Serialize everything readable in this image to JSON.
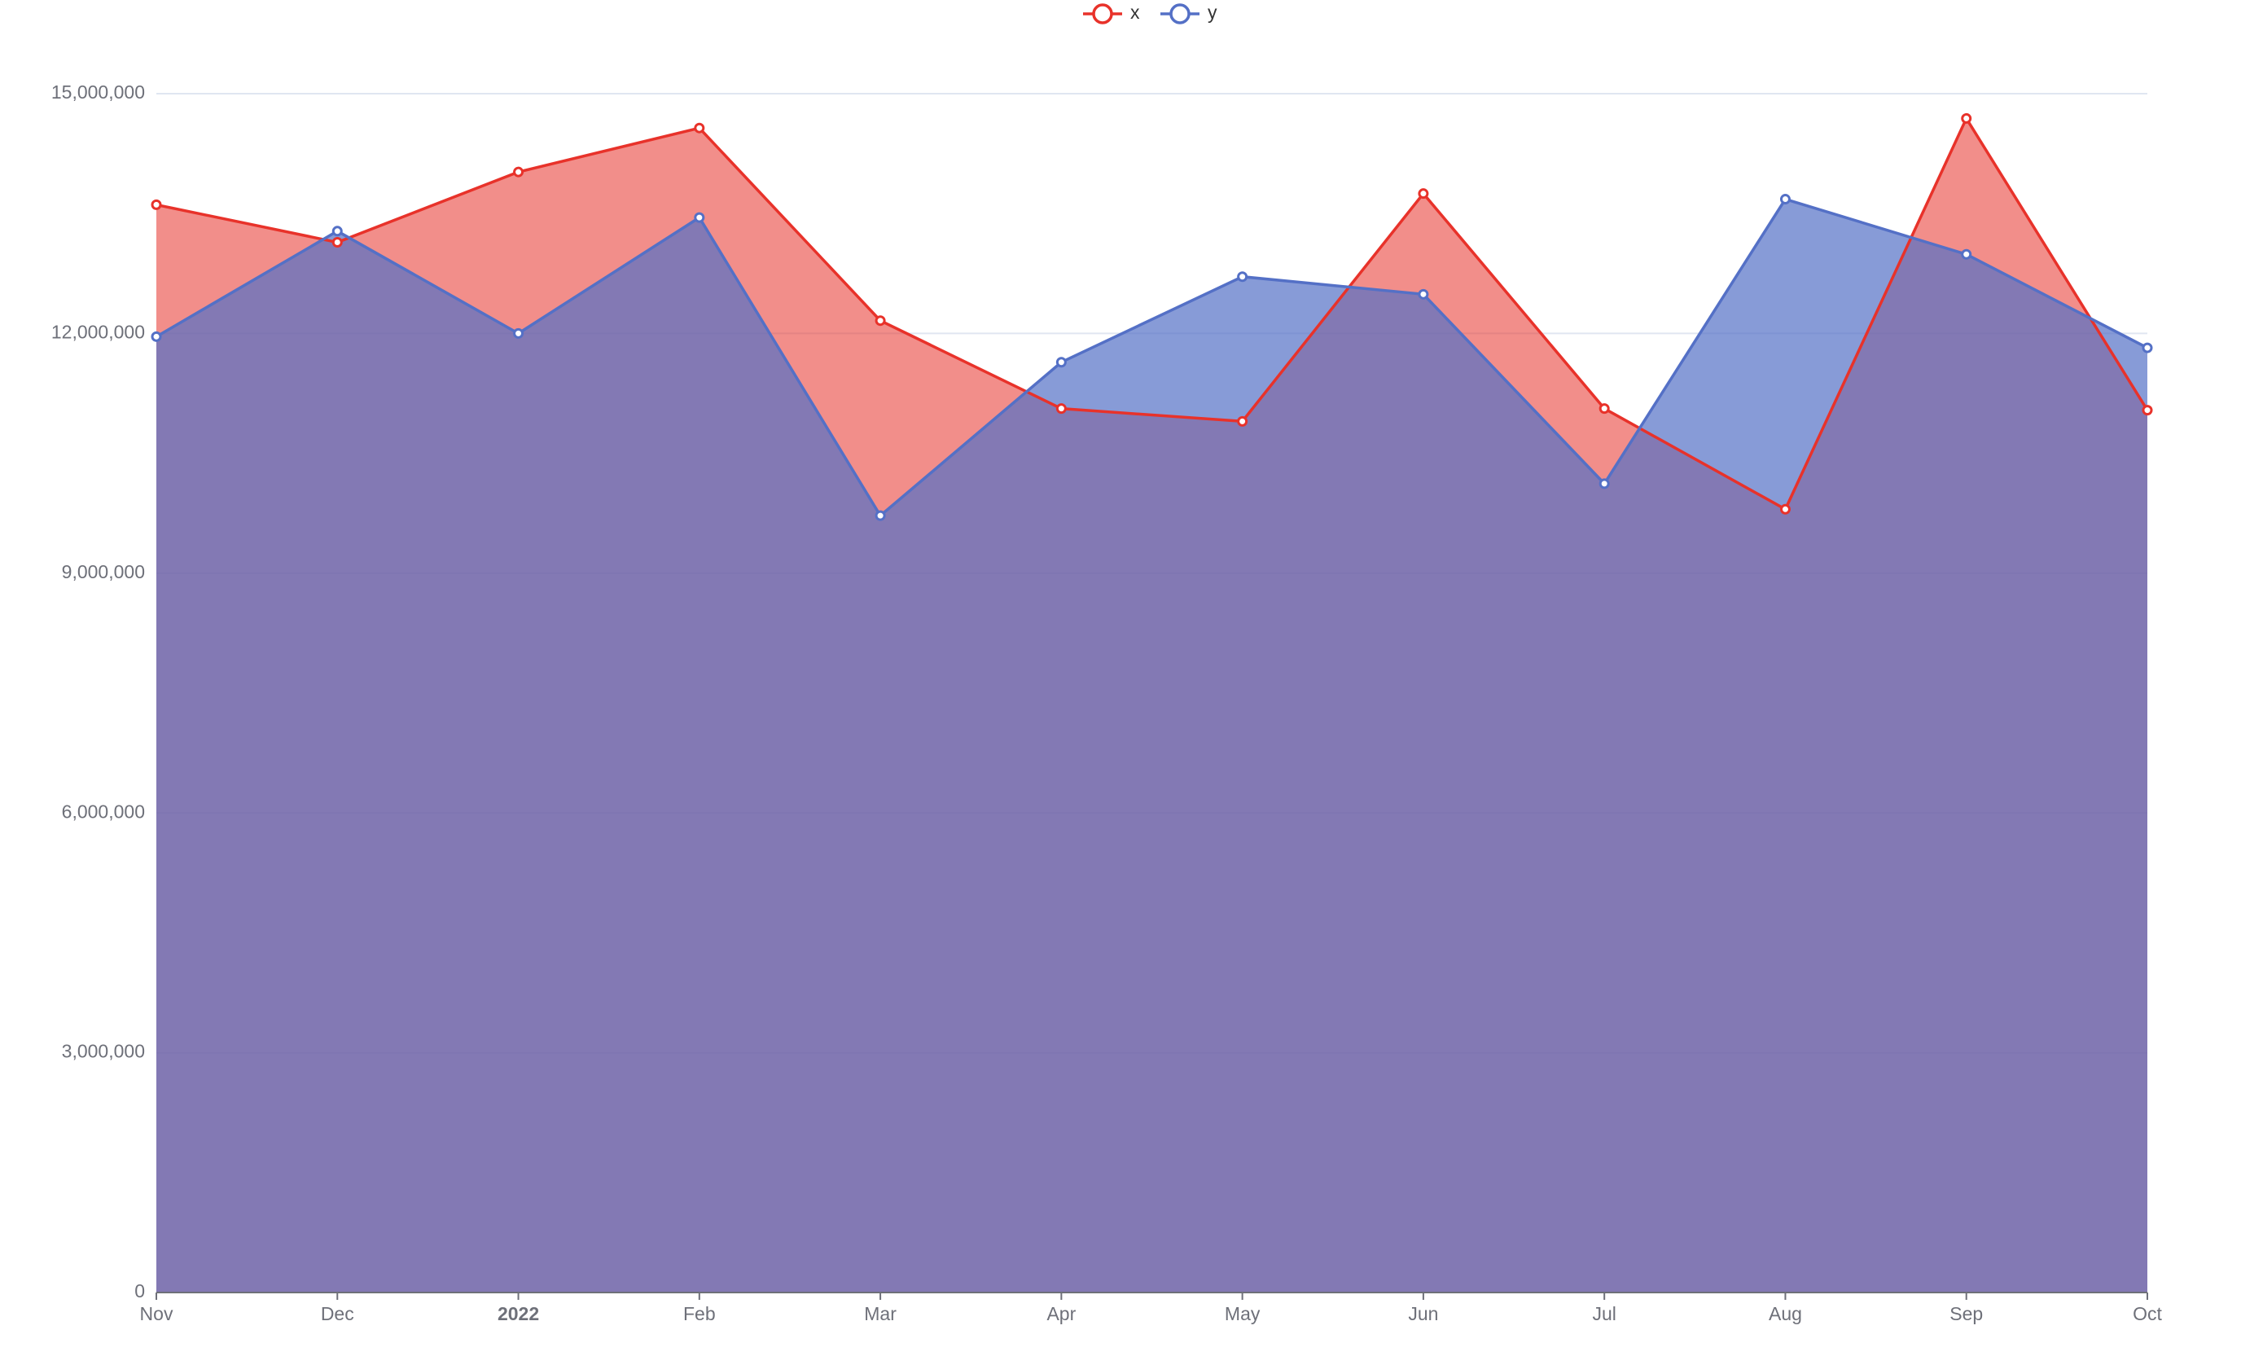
{
  "chart_data": {
    "type": "area",
    "categories": [
      "Nov",
      "Dec",
      "2022",
      "Feb",
      "Mar",
      "Apr",
      "May",
      "Jun",
      "Jul",
      "Aug",
      "Sep",
      "Oct"
    ],
    "series": [
      {
        "name": "x",
        "color": "#e8322a",
        "values": [
          13610000,
          13140000,
          14020000,
          14570000,
          12160000,
          11060000,
          10900000,
          13750000,
          11060000,
          9800000,
          14690000,
          11040000
        ]
      },
      {
        "name": "y",
        "color": "#5470c6",
        "values": [
          11960000,
          13280000,
          12000000,
          13450000,
          9720000,
          11640000,
          12710000,
          12490000,
          10120000,
          13680000,
          12990000,
          11820000
        ]
      }
    ],
    "ylim": [
      0,
      15000000
    ],
    "yticks": [
      0,
      {
        "value": 3000000,
        "label": "3,000,000"
      },
      {
        "value": 6000000,
        "label": "6,000,000"
      },
      {
        "value": 9000000,
        "label": "9,000,000"
      },
      {
        "value": 12000000,
        "label": "12,000,000"
      },
      {
        "value": 15000000,
        "label": "15,000,000"
      }
    ],
    "grid": true,
    "legend": "top"
  }
}
